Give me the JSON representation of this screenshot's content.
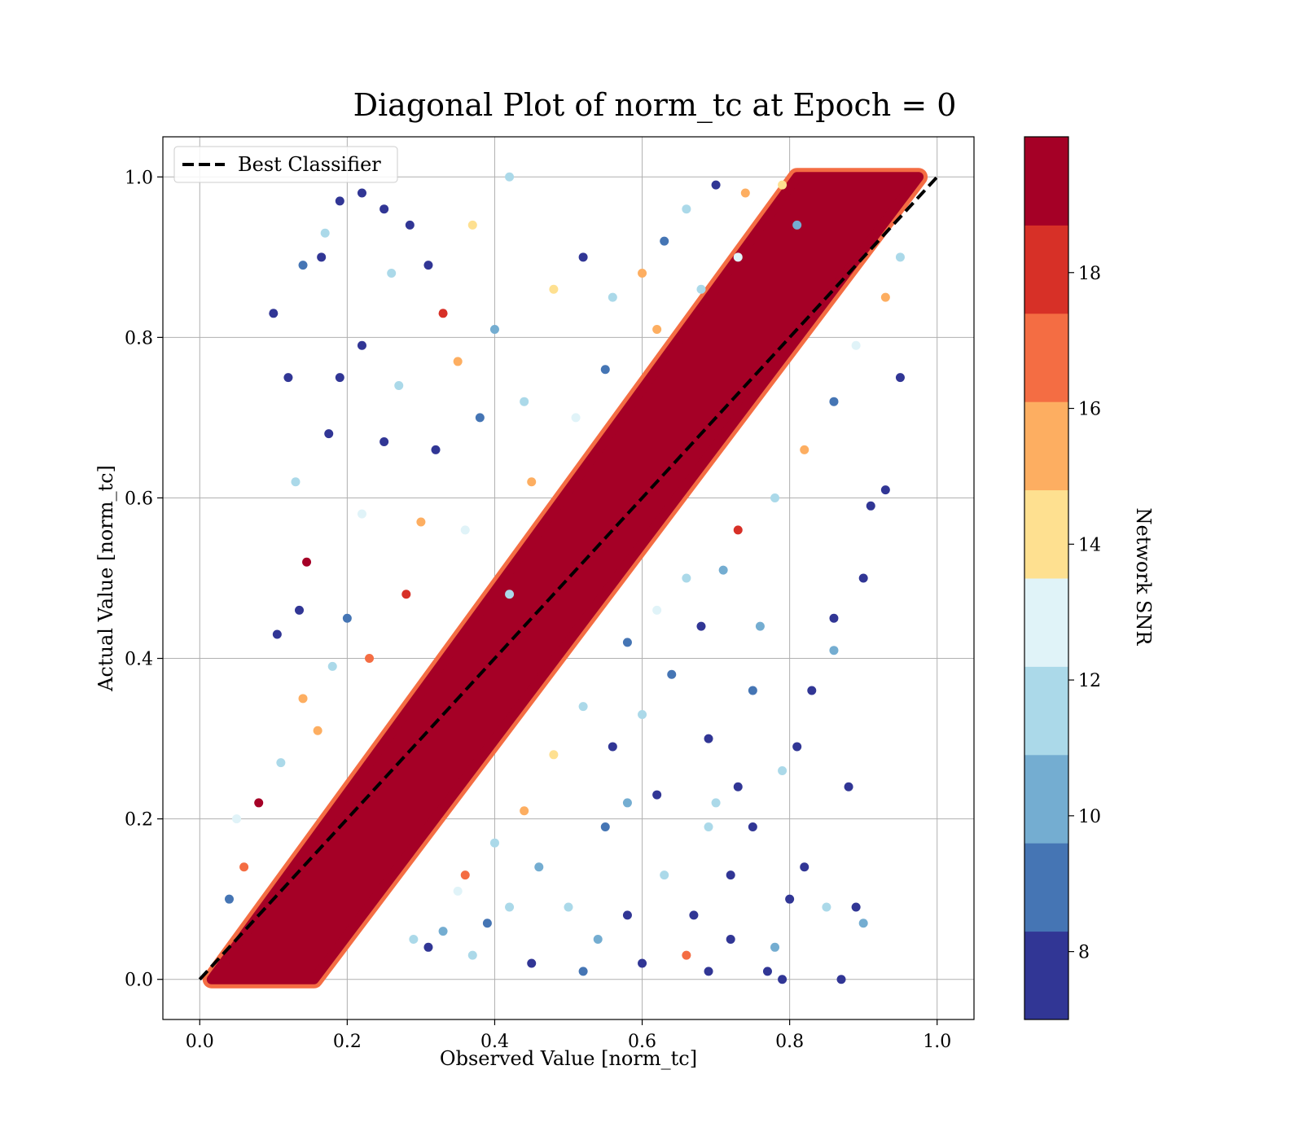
{
  "chart_data": {
    "type": "scatter",
    "title": "Diagonal Plot of norm_tc at Epoch = 0",
    "xlabel": "Observed Value [norm_tc]",
    "ylabel": "Actual Value [norm_tc]",
    "xlim": [
      -0.05,
      1.05
    ],
    "ylim": [
      -0.05,
      1.05
    ],
    "x_ticks": [
      0.0,
      0.2,
      0.4,
      0.6,
      0.8,
      1.0
    ],
    "y_ticks": [
      0.0,
      0.2,
      0.4,
      0.6,
      0.8,
      1.0
    ],
    "x_tick_labels": [
      "0.0",
      "0.2",
      "0.4",
      "0.6",
      "0.8",
      "1.0"
    ],
    "y_tick_labels": [
      "0.0",
      "0.2",
      "0.4",
      "0.6",
      "0.8",
      "1.0"
    ],
    "grid": true,
    "legend": {
      "placement": "top-left",
      "entries": [
        {
          "label": "Best Classifier",
          "style": "dashed",
          "color": "#000000"
        }
      ]
    },
    "reference_line": {
      "name": "Best Classifier",
      "x": [
        0.0,
        1.0
      ],
      "y": [
        0.0,
        1.0
      ],
      "style": "dashed",
      "color": "#000000"
    },
    "colorbar": {
      "label": "Network SNR",
      "range": [
        7,
        20
      ],
      "ticks": [
        8,
        10,
        12,
        14,
        16,
        18
      ],
      "tick_labels": [
        "8",
        "10",
        "12",
        "14",
        "16",
        "18"
      ],
      "colors": [
        "#313695",
        "#4575b4",
        "#74add1",
        "#abd9e9",
        "#e0f3f8",
        "#fee090",
        "#fdae61",
        "#f46d43",
        "#d73027",
        "#a50026"
      ]
    },
    "points": [
      [
        0.1,
        0.83,
        8
      ],
      [
        0.12,
        0.75,
        8
      ],
      [
        0.14,
        0.89,
        9
      ],
      [
        0.165,
        0.9,
        8
      ],
      [
        0.17,
        0.93,
        12
      ],
      [
        0.19,
        0.97,
        8
      ],
      [
        0.175,
        0.68,
        8
      ],
      [
        0.19,
        0.75,
        8
      ],
      [
        0.22,
        0.98,
        8
      ],
      [
        0.22,
        0.79,
        8
      ],
      [
        0.25,
        0.96,
        8
      ],
      [
        0.26,
        0.88,
        11
      ],
      [
        0.285,
        0.94,
        8
      ],
      [
        0.31,
        0.89,
        8
      ],
      [
        0.33,
        0.83,
        18
      ],
      [
        0.37,
        0.94,
        14
      ],
      [
        0.42,
        1.0,
        12
      ],
      [
        0.13,
        0.62,
        12
      ],
      [
        0.145,
        0.52,
        19
      ],
      [
        0.135,
        0.46,
        8
      ],
      [
        0.105,
        0.43,
        8
      ],
      [
        0.14,
        0.35,
        16
      ],
      [
        0.11,
        0.27,
        12
      ],
      [
        0.08,
        0.22,
        19
      ],
      [
        0.06,
        0.14,
        17
      ],
      [
        0.04,
        0.1,
        9
      ],
      [
        0.05,
        0.2,
        13
      ],
      [
        0.31,
        0.04,
        8
      ],
      [
        0.37,
        0.03,
        11
      ],
      [
        0.45,
        0.02,
        8
      ],
      [
        0.52,
        0.01,
        9
      ],
      [
        0.6,
        0.02,
        8
      ],
      [
        0.69,
        0.01,
        8
      ],
      [
        0.77,
        0.01,
        8
      ],
      [
        0.79,
        0.0,
        8
      ],
      [
        0.87,
        0.0,
        8
      ],
      [
        0.9,
        0.07,
        10
      ],
      [
        0.89,
        0.09,
        8
      ],
      [
        0.85,
        0.09,
        12
      ],
      [
        0.82,
        0.14,
        8
      ],
      [
        0.8,
        0.1,
        8
      ],
      [
        0.78,
        0.04,
        10
      ],
      [
        0.72,
        0.05,
        8
      ],
      [
        0.72,
        0.13,
        8
      ],
      [
        0.7,
        0.22,
        11
      ],
      [
        0.73,
        0.24,
        8
      ],
      [
        0.79,
        0.26,
        11
      ],
      [
        0.81,
        0.29,
        8
      ],
      [
        0.75,
        0.19,
        8
      ],
      [
        0.69,
        0.19,
        11
      ],
      [
        0.83,
        0.36,
        8
      ],
      [
        0.86,
        0.41,
        10
      ],
      [
        0.88,
        0.24,
        8
      ],
      [
        0.86,
        0.45,
        8
      ],
      [
        0.9,
        0.5,
        8
      ],
      [
        0.91,
        0.59,
        8
      ],
      [
        0.93,
        0.61,
        8
      ],
      [
        0.95,
        0.75,
        8
      ],
      [
        0.73,
        0.56,
        18
      ],
      [
        0.66,
        0.5,
        11
      ],
      [
        0.75,
        0.36,
        9
      ],
      [
        0.58,
        0.22,
        10
      ],
      [
        0.62,
        0.23,
        8
      ],
      [
        0.55,
        0.19,
        9
      ],
      [
        0.5,
        0.09,
        11
      ],
      [
        0.46,
        0.14,
        10
      ],
      [
        0.42,
        0.09,
        12
      ],
      [
        0.39,
        0.07,
        9
      ],
      [
        0.35,
        0.11,
        13
      ],
      [
        0.33,
        0.06,
        10
      ],
      [
        0.29,
        0.05,
        11
      ],
      [
        0.58,
        0.08,
        8
      ],
      [
        0.63,
        0.13,
        12
      ],
      [
        0.67,
        0.08,
        8
      ],
      [
        0.66,
        0.03,
        17
      ],
      [
        0.54,
        0.05,
        10
      ],
      [
        0.42,
        0.48,
        11
      ],
      [
        0.36,
        0.56,
        13
      ],
      [
        0.3,
        0.57,
        16
      ],
      [
        0.32,
        0.66,
        8
      ],
      [
        0.38,
        0.7,
        9
      ],
      [
        0.44,
        0.72,
        12
      ],
      [
        0.4,
        0.81,
        10
      ],
      [
        0.48,
        0.86,
        14
      ],
      [
        0.52,
        0.9,
        8
      ],
      [
        0.56,
        0.85,
        11
      ],
      [
        0.6,
        0.88,
        15
      ],
      [
        0.63,
        0.92,
        9
      ],
      [
        0.66,
        0.96,
        12
      ],
      [
        0.7,
        0.99,
        8
      ],
      [
        0.74,
        0.98,
        16
      ],
      [
        0.79,
        0.99,
        14
      ],
      [
        0.81,
        0.94,
        10
      ],
      [
        0.35,
        0.77,
        15
      ],
      [
        0.27,
        0.74,
        12
      ],
      [
        0.25,
        0.67,
        8
      ],
      [
        0.22,
        0.58,
        13
      ],
      [
        0.2,
        0.45,
        9
      ],
      [
        0.23,
        0.4,
        17
      ],
      [
        0.18,
        0.39,
        11
      ],
      [
        0.16,
        0.31,
        16
      ],
      [
        0.28,
        0.48,
        18
      ],
      [
        0.45,
        0.62,
        15
      ],
      [
        0.51,
        0.7,
        13
      ],
      [
        0.55,
        0.76,
        9
      ],
      [
        0.62,
        0.81,
        16
      ],
      [
        0.68,
        0.86,
        11
      ],
      [
        0.73,
        0.9,
        13
      ],
      [
        0.58,
        0.42,
        9
      ],
      [
        0.52,
        0.34,
        12
      ],
      [
        0.48,
        0.28,
        14
      ],
      [
        0.44,
        0.21,
        16
      ],
      [
        0.4,
        0.17,
        11
      ],
      [
        0.36,
        0.13,
        17
      ],
      [
        0.62,
        0.46,
        13
      ],
      [
        0.68,
        0.44,
        8
      ],
      [
        0.71,
        0.51,
        10
      ],
      [
        0.78,
        0.6,
        12
      ],
      [
        0.82,
        0.66,
        15
      ],
      [
        0.86,
        0.72,
        9
      ],
      [
        0.89,
        0.79,
        13
      ],
      [
        0.93,
        0.85,
        16
      ],
      [
        0.95,
        0.9,
        11
      ],
      [
        0.56,
        0.29,
        8
      ],
      [
        0.6,
        0.33,
        11
      ],
      [
        0.64,
        0.38,
        9
      ],
      [
        0.69,
        0.3,
        8
      ],
      [
        0.76,
        0.44,
        10
      ]
    ],
    "band": [
      {
        "x_at_y0": [
          0.016,
          0.155
        ],
        "x_at_y1": [
          0.81,
          0.975
        ],
        "snr": 19
      }
    ]
  }
}
